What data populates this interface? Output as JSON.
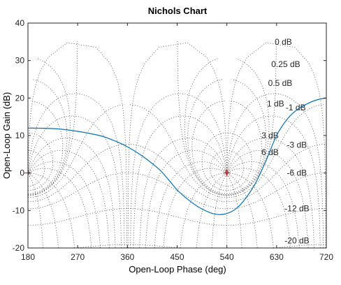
{
  "chart_data": {
    "type": "line",
    "title": "Nichols Chart",
    "xlabel": "Open-Loop Phase (deg)",
    "ylabel": "Open-Loop Gain (dB)",
    "xlim": [
      180,
      720
    ],
    "ylim": [
      -20,
      40
    ],
    "xticks": [
      "180",
      "270",
      "360",
      "450",
      "540",
      "630",
      "720"
    ],
    "yticks": [
      "-20",
      "-10",
      "0",
      "10",
      "20",
      "30",
      "40"
    ],
    "grid": "dotted Nichols contours",
    "closed_loop_magnitude_labels": [
      "0 dB",
      "0.25 dB",
      "0.5 dB",
      "1 dB",
      "3 dB",
      "6 dB",
      "-1 dB",
      "-3 dB",
      "-6 dB",
      "-12 dB",
      "-20 dB"
    ],
    "critical_points": [
      {
        "x": 180,
        "y": 0,
        "marker": "+"
      },
      {
        "x": 540,
        "y": 0,
        "marker": "+"
      }
    ],
    "series": [
      {
        "color": "#0072bd",
        "x": [
          180,
          240,
          300,
          330,
          360,
          390,
          420,
          450,
          470,
          490,
          510,
          525,
          540,
          555,
          570,
          590,
          610,
          630,
          650,
          670,
          690,
          705,
          720
        ],
        "y": [
          12,
          11.7,
          10.3,
          9,
          7,
          4.2,
          0.6,
          -4.5,
          -7.1,
          -9.2,
          -10.6,
          -11.1,
          -10.8,
          -9.7,
          -7.5,
          -3.2,
          3,
          10,
          14.5,
          17.2,
          18.8,
          19.6,
          20
        ]
      }
    ],
    "colors": {
      "curve": "#0072bd",
      "grid": "#404040",
      "marker": "#d00000"
    }
  }
}
